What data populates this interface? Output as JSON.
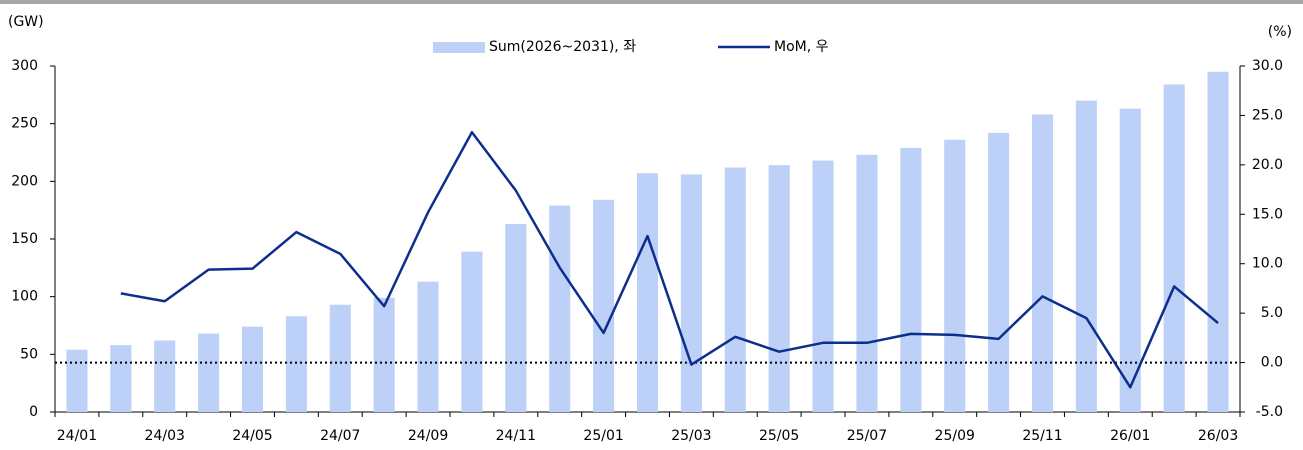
{
  "chart_data": {
    "type": "bar_line",
    "y_label": "(GW)",
    "y2_label": "(%)",
    "categories": [
      "24/01",
      null,
      "24/03",
      null,
      "24/05",
      null,
      "24/07",
      null,
      "24/09",
      null,
      "24/11",
      null,
      "25/01",
      null,
      "25/03",
      null,
      "25/05",
      null,
      "25/07",
      null,
      "25/09",
      null,
      "25/11",
      null,
      "26/01",
      null,
      "26/03"
    ],
    "series": [
      {
        "name": "Sum(2026~2031), 좌",
        "type": "bar",
        "color": "#bdd0f7",
        "axis": "y",
        "values": [
          54,
          58,
          62,
          68,
          74,
          83,
          93,
          99,
          113,
          139,
          163,
          179,
          184,
          207,
          206,
          212,
          214,
          218,
          223,
          229,
          236,
          242,
          258,
          270,
          263,
          284,
          295
        ]
      },
      {
        "name": "MoM, 우",
        "type": "line",
        "color": "#0d2f8c",
        "axis": "y2",
        "values": [
          null,
          7.0,
          6.2,
          9.4,
          9.5,
          13.2,
          11.0,
          5.7,
          15.2,
          23.3,
          17.4,
          9.6,
          3.0,
          12.8,
          -0.2,
          2.6,
          1.1,
          2.0,
          2.0,
          2.9,
          2.8,
          2.4,
          6.7,
          4.5,
          -2.5,
          7.7,
          4.0
        ]
      }
    ],
    "ylim": [
      0,
      300
    ],
    "yticks": [
      0,
      50,
      100,
      150,
      200,
      250,
      300
    ],
    "y2lim": [
      -5,
      30
    ],
    "y2ticks": [
      {
        "value": -5,
        "label": "-5.0"
      },
      {
        "value": 0,
        "label": "0.0"
      },
      {
        "value": 5,
        "label": "5.0"
      },
      {
        "value": 10,
        "label": "10.0"
      },
      {
        "value": 15,
        "label": "15.0"
      },
      {
        "value": 20,
        "label": "20.0"
      },
      {
        "value": 25,
        "label": "25.0"
      },
      {
        "value": 30,
        "label": "30.0"
      }
    ]
  }
}
